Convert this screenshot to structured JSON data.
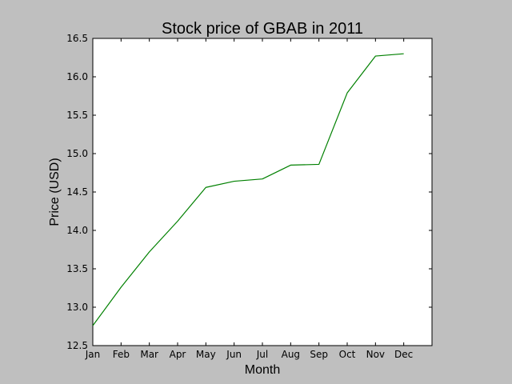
{
  "chart_data": {
    "type": "line",
    "title": "Stock price of GBAB in 2011",
    "xlabel": "Month",
    "ylabel": "Price (USD)",
    "categories": [
      "Jan",
      "Feb",
      "Mar",
      "Apr",
      "May",
      "Jun",
      "Jul",
      "Aug",
      "Sep",
      "Oct",
      "Nov",
      "Dec"
    ],
    "x_range": [
      0,
      12
    ],
    "ylim": [
      12.5,
      16.5
    ],
    "yticks": [
      "12.5",
      "13.0",
      "13.5",
      "14.0",
      "14.5",
      "15.0",
      "15.5",
      "16.0",
      "16.5"
    ],
    "series": [
      {
        "color": "#008000",
        "values": [
          12.76,
          13.26,
          13.72,
          14.12,
          14.56,
          14.64,
          14.67,
          14.85,
          14.86,
          15.79,
          16.27,
          16.3
        ]
      }
    ],
    "grid": false,
    "legend": "none"
  }
}
